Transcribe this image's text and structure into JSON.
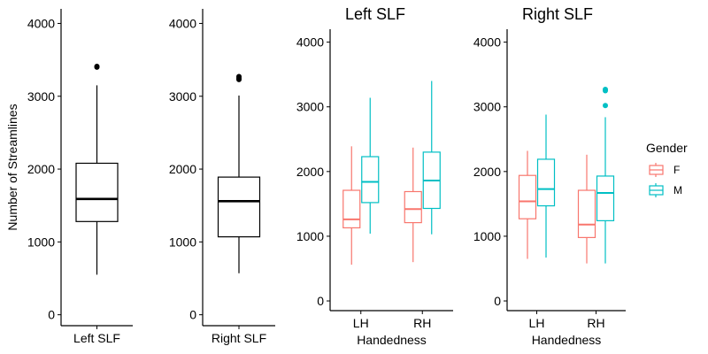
{
  "chart_data": [
    {
      "type": "boxplot",
      "title": "",
      "xlabel": "",
      "ylabel": "Number of Streamlines",
      "ylim": [
        -150,
        4200
      ],
      "yticks": [
        0,
        1000,
        2000,
        3000,
        4000
      ],
      "categories": [
        "Left SLF"
      ],
      "series": [
        {
          "boxes": [
            {
              "category": "Left SLF",
              "whisker_low": 550,
              "q1": 1280,
              "median": 1590,
              "q3": 2080,
              "whisker_high": 3150,
              "outliers": [
                3400,
                3410
              ]
            }
          ]
        }
      ]
    },
    {
      "type": "boxplot",
      "title": "",
      "xlabel": "",
      "ylabel": "",
      "ylim": [
        -150,
        4200
      ],
      "yticks": [
        0,
        1000,
        2000,
        3000,
        4000
      ],
      "categories": [
        "Right SLF"
      ],
      "series": [
        {
          "boxes": [
            {
              "category": "Right SLF",
              "whisker_low": 570,
              "q1": 1070,
              "median": 1560,
              "q3": 1890,
              "whisker_high": 3010,
              "outliers": [
                3230,
                3250,
                3270
              ]
            }
          ]
        }
      ]
    },
    {
      "type": "boxplot",
      "title": "Left SLF",
      "xlabel": "Handedness",
      "ylabel": "",
      "ylim": [
        -150,
        4200
      ],
      "yticks": [
        0,
        1000,
        2000,
        3000,
        4000
      ],
      "categories": [
        "LH",
        "RH"
      ],
      "series": [
        {
          "name": "F",
          "color": "#F8766D",
          "boxes": [
            {
              "category": "LH",
              "whisker_low": 560,
              "q1": 1130,
              "median": 1260,
              "q3": 1710,
              "whisker_high": 2390,
              "outliers": []
            },
            {
              "category": "RH",
              "whisker_low": 600,
              "q1": 1210,
              "median": 1420,
              "q3": 1690,
              "whisker_high": 2370,
              "outliers": []
            }
          ]
        },
        {
          "name": "M",
          "color": "#00BFC4",
          "boxes": [
            {
              "category": "LH",
              "whisker_low": 1040,
              "q1": 1520,
              "median": 1840,
              "q3": 2230,
              "whisker_high": 3140,
              "outliers": []
            },
            {
              "category": "RH",
              "whisker_low": 1030,
              "q1": 1430,
              "median": 1860,
              "q3": 2300,
              "whisker_high": 3400,
              "outliers": []
            }
          ]
        }
      ]
    },
    {
      "type": "boxplot",
      "title": "Right SLF",
      "xlabel": "Handedness",
      "ylabel": "",
      "ylim": [
        -150,
        4200
      ],
      "yticks": [
        0,
        1000,
        2000,
        3000,
        4000
      ],
      "categories": [
        "LH",
        "RH"
      ],
      "series": [
        {
          "name": "F",
          "color": "#F8766D",
          "boxes": [
            {
              "category": "LH",
              "whisker_low": 650,
              "q1": 1270,
              "median": 1540,
              "q3": 1940,
              "whisker_high": 2320,
              "outliers": []
            },
            {
              "category": "RH",
              "whisker_low": 580,
              "q1": 980,
              "median": 1180,
              "q3": 1710,
              "whisker_high": 2260,
              "outliers": []
            }
          ]
        },
        {
          "name": "M",
          "color": "#00BFC4",
          "boxes": [
            {
              "category": "LH",
              "whisker_low": 670,
              "q1": 1470,
              "median": 1730,
              "q3": 2190,
              "whisker_high": 2880,
              "outliers": []
            },
            {
              "category": "RH",
              "whisker_low": 580,
              "q1": 1240,
              "median": 1670,
              "q3": 1930,
              "whisker_high": 2840,
              "outliers": [
                3020,
                3250,
                3270
              ]
            }
          ]
        }
      ]
    }
  ],
  "legend": {
    "title": "Gender",
    "placement": "right",
    "entries": [
      {
        "label": "F",
        "color": "#F8766D"
      },
      {
        "label": "M",
        "color": "#00BFC4"
      }
    ]
  }
}
